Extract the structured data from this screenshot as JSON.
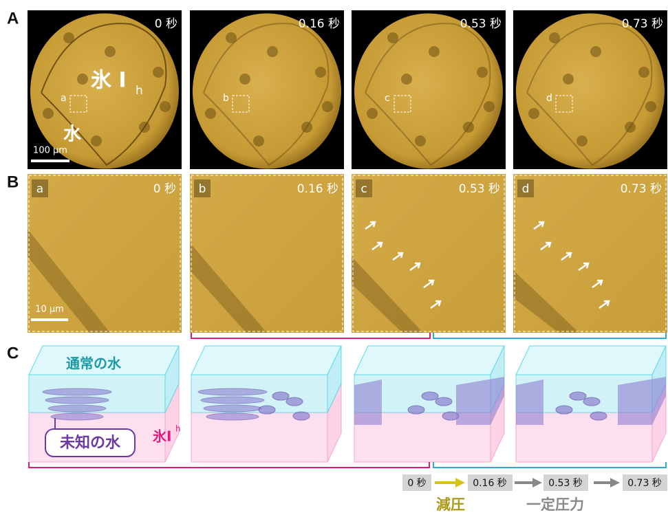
{
  "panel_a": {
    "label": "A",
    "images": [
      {
        "time": "0 秒",
        "inset": "a"
      },
      {
        "time": "0.16 秒",
        "inset": "b"
      },
      {
        "time": "0.53 秒",
        "inset": "c"
      },
      {
        "time": "0.73 秒",
        "inset": "d"
      }
    ],
    "ice_label": "氷 I",
    "ice_subscript": "h",
    "water_label": "水",
    "scale_bar": "100 μm"
  },
  "panel_b": {
    "label": "B",
    "images": [
      {
        "time": "0 秒",
        "letter": "a"
      },
      {
        "time": "0.16 秒",
        "letter": "b"
      },
      {
        "time": "0.53 秒",
        "letter": "c"
      },
      {
        "time": "0.73 秒",
        "letter": "d"
      }
    ],
    "scale_bar": "10 μm"
  },
  "panel_c": {
    "label": "C",
    "normal_water": "通常の水",
    "unknown_water": "未知の水",
    "ice_label": "氷I",
    "ice_subscript": "h"
  },
  "timeline": {
    "times": [
      "0 秒",
      "0.16 秒",
      "0.53 秒",
      "0.73 秒"
    ],
    "decompression": "減圧",
    "constant_pressure": "一定圧力"
  }
}
